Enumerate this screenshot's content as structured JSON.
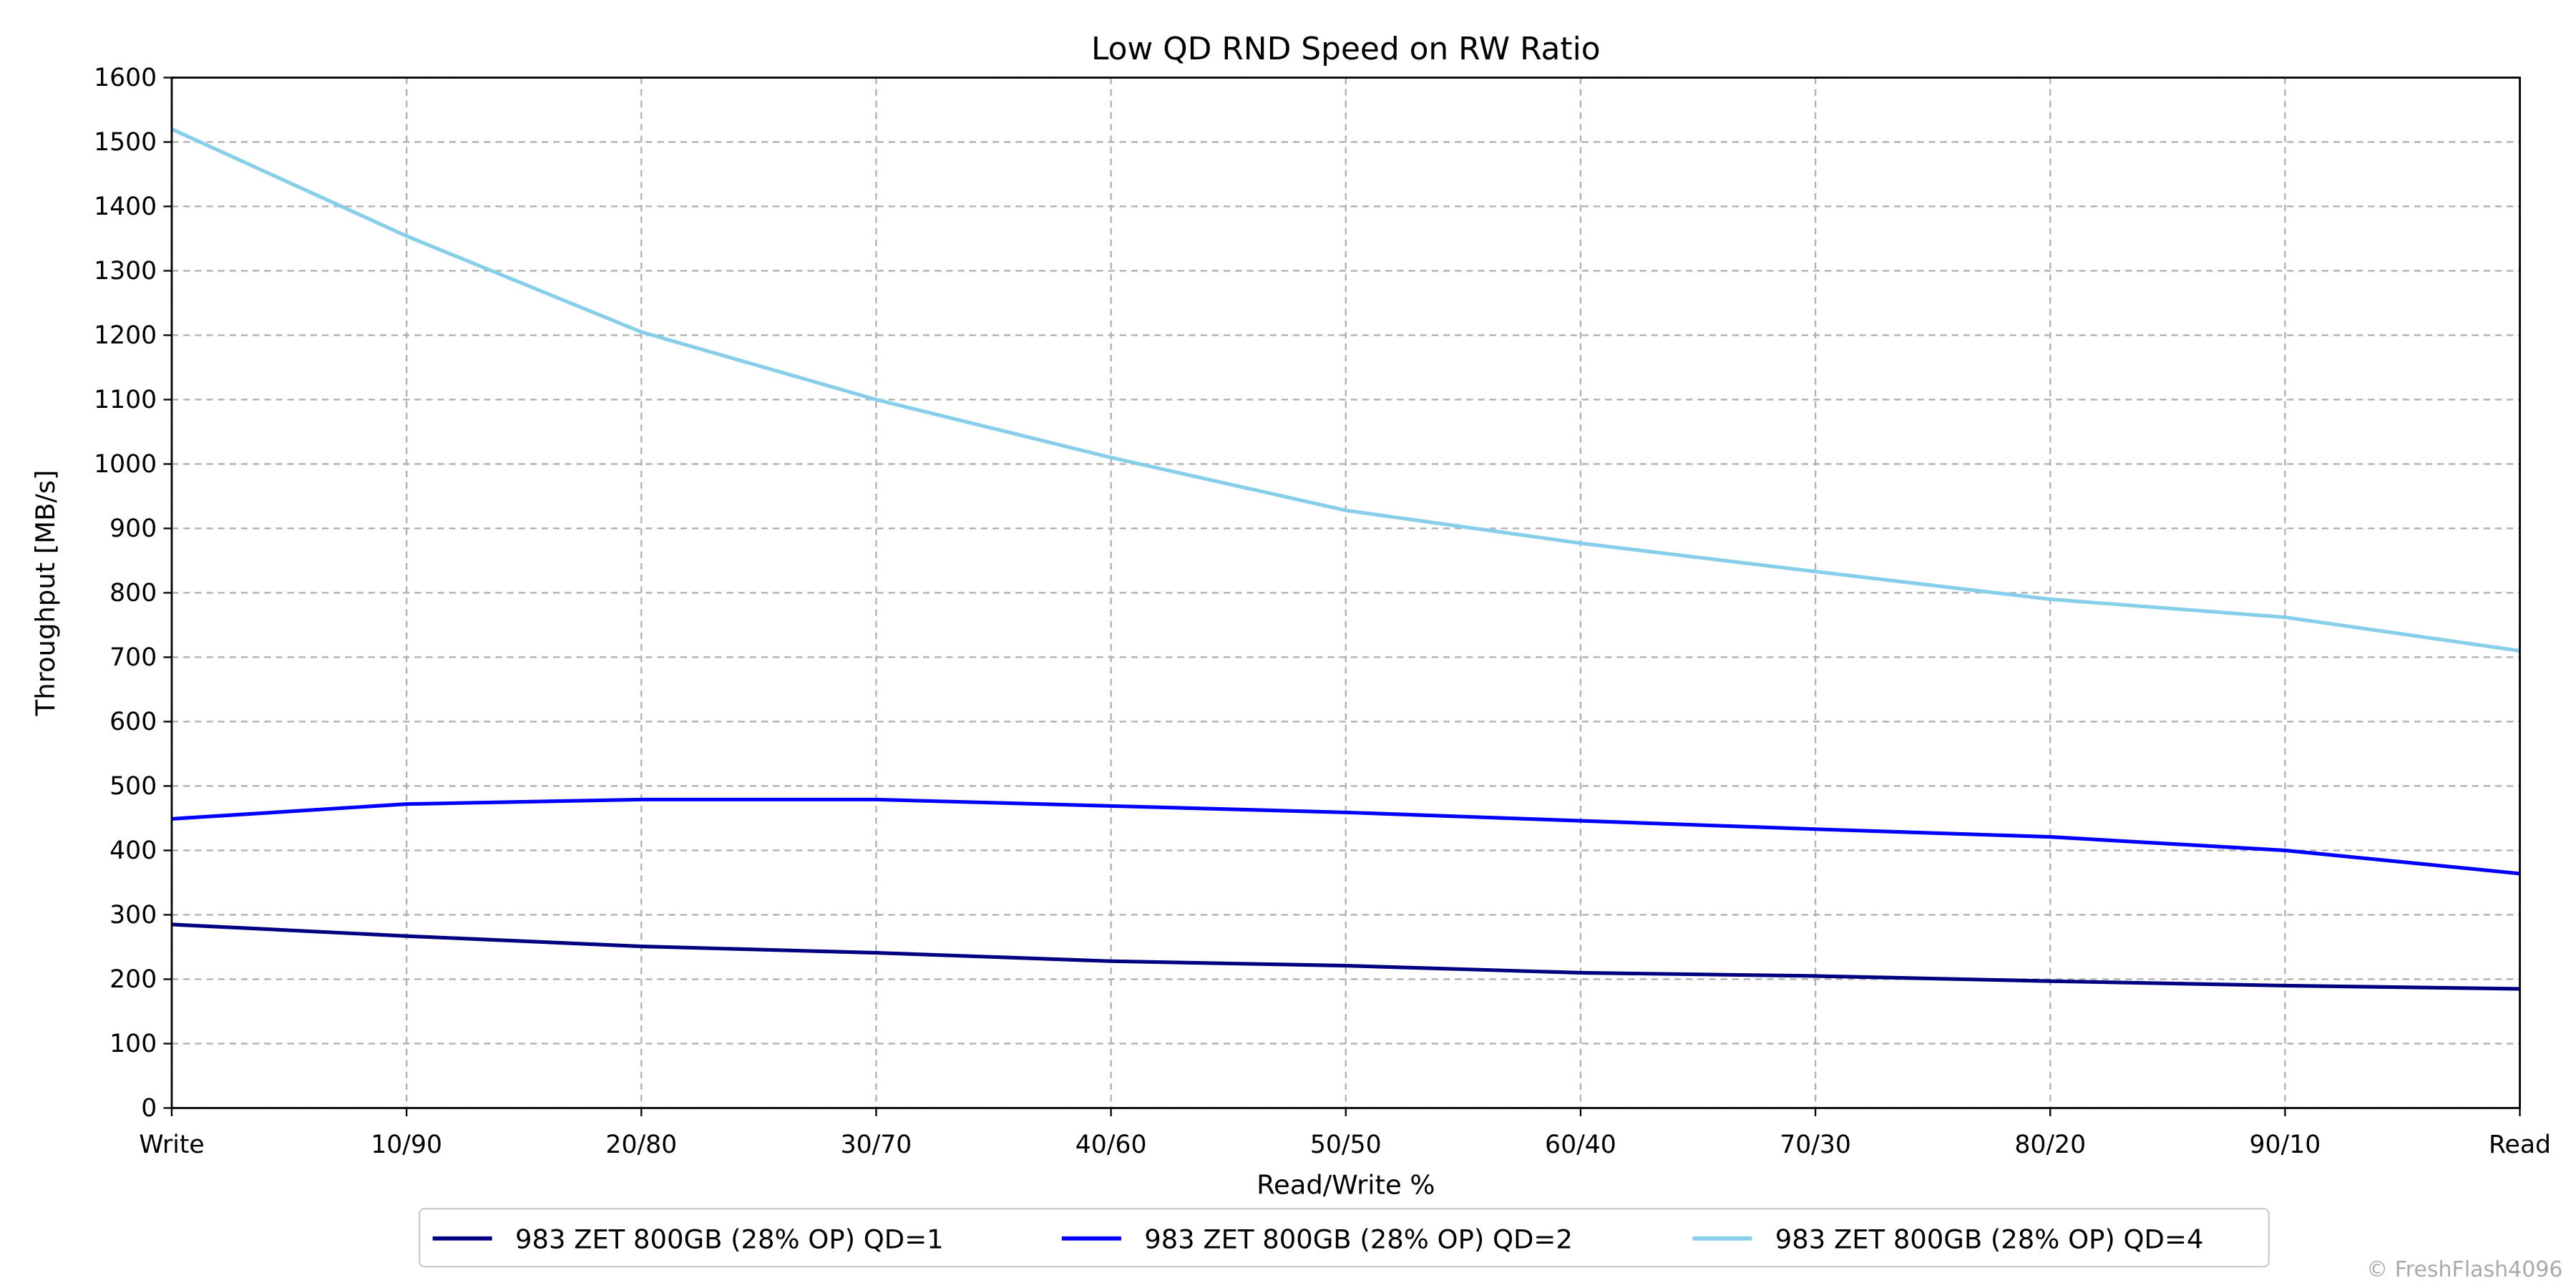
{
  "chart_data": {
    "type": "line",
    "title": "Low QD RND Speed on RW Ratio",
    "xlabel": "Read/Write %",
    "ylabel": "Throughput [MB/s]",
    "categories": [
      "Write",
      "10/90",
      "20/80",
      "30/70",
      "40/60",
      "50/50",
      "60/40",
      "70/30",
      "80/20",
      "90/10",
      "Read"
    ],
    "ylim": [
      0,
      1600
    ],
    "yticks": [
      0,
      100,
      200,
      300,
      400,
      500,
      600,
      700,
      800,
      900,
      1000,
      1100,
      1200,
      1300,
      1400,
      1500,
      1600
    ],
    "grid": true,
    "legend_position": "bottom-center",
    "series": [
      {
        "name": "983 ZET 800GB (28% OP) QD=1",
        "color": "#000080",
        "values": [
          285,
          267,
          251,
          241,
          228,
          221,
          210,
          205,
          197,
          190,
          185
        ]
      },
      {
        "name": "983 ZET 800GB (28% OP) QD=2",
        "color": "#0000ff",
        "values": [
          449,
          472,
          479,
          479,
          469,
          459,
          446,
          433,
          421,
          400,
          364
        ]
      },
      {
        "name": "983 ZET 800GB (28% OP) QD=4",
        "color": "#87ceeb",
        "values": [
          1520,
          1354,
          1205,
          1100,
          1010,
          928,
          877,
          833,
          790,
          762,
          710
        ]
      }
    ],
    "watermark": "© FreshFlash4096"
  }
}
